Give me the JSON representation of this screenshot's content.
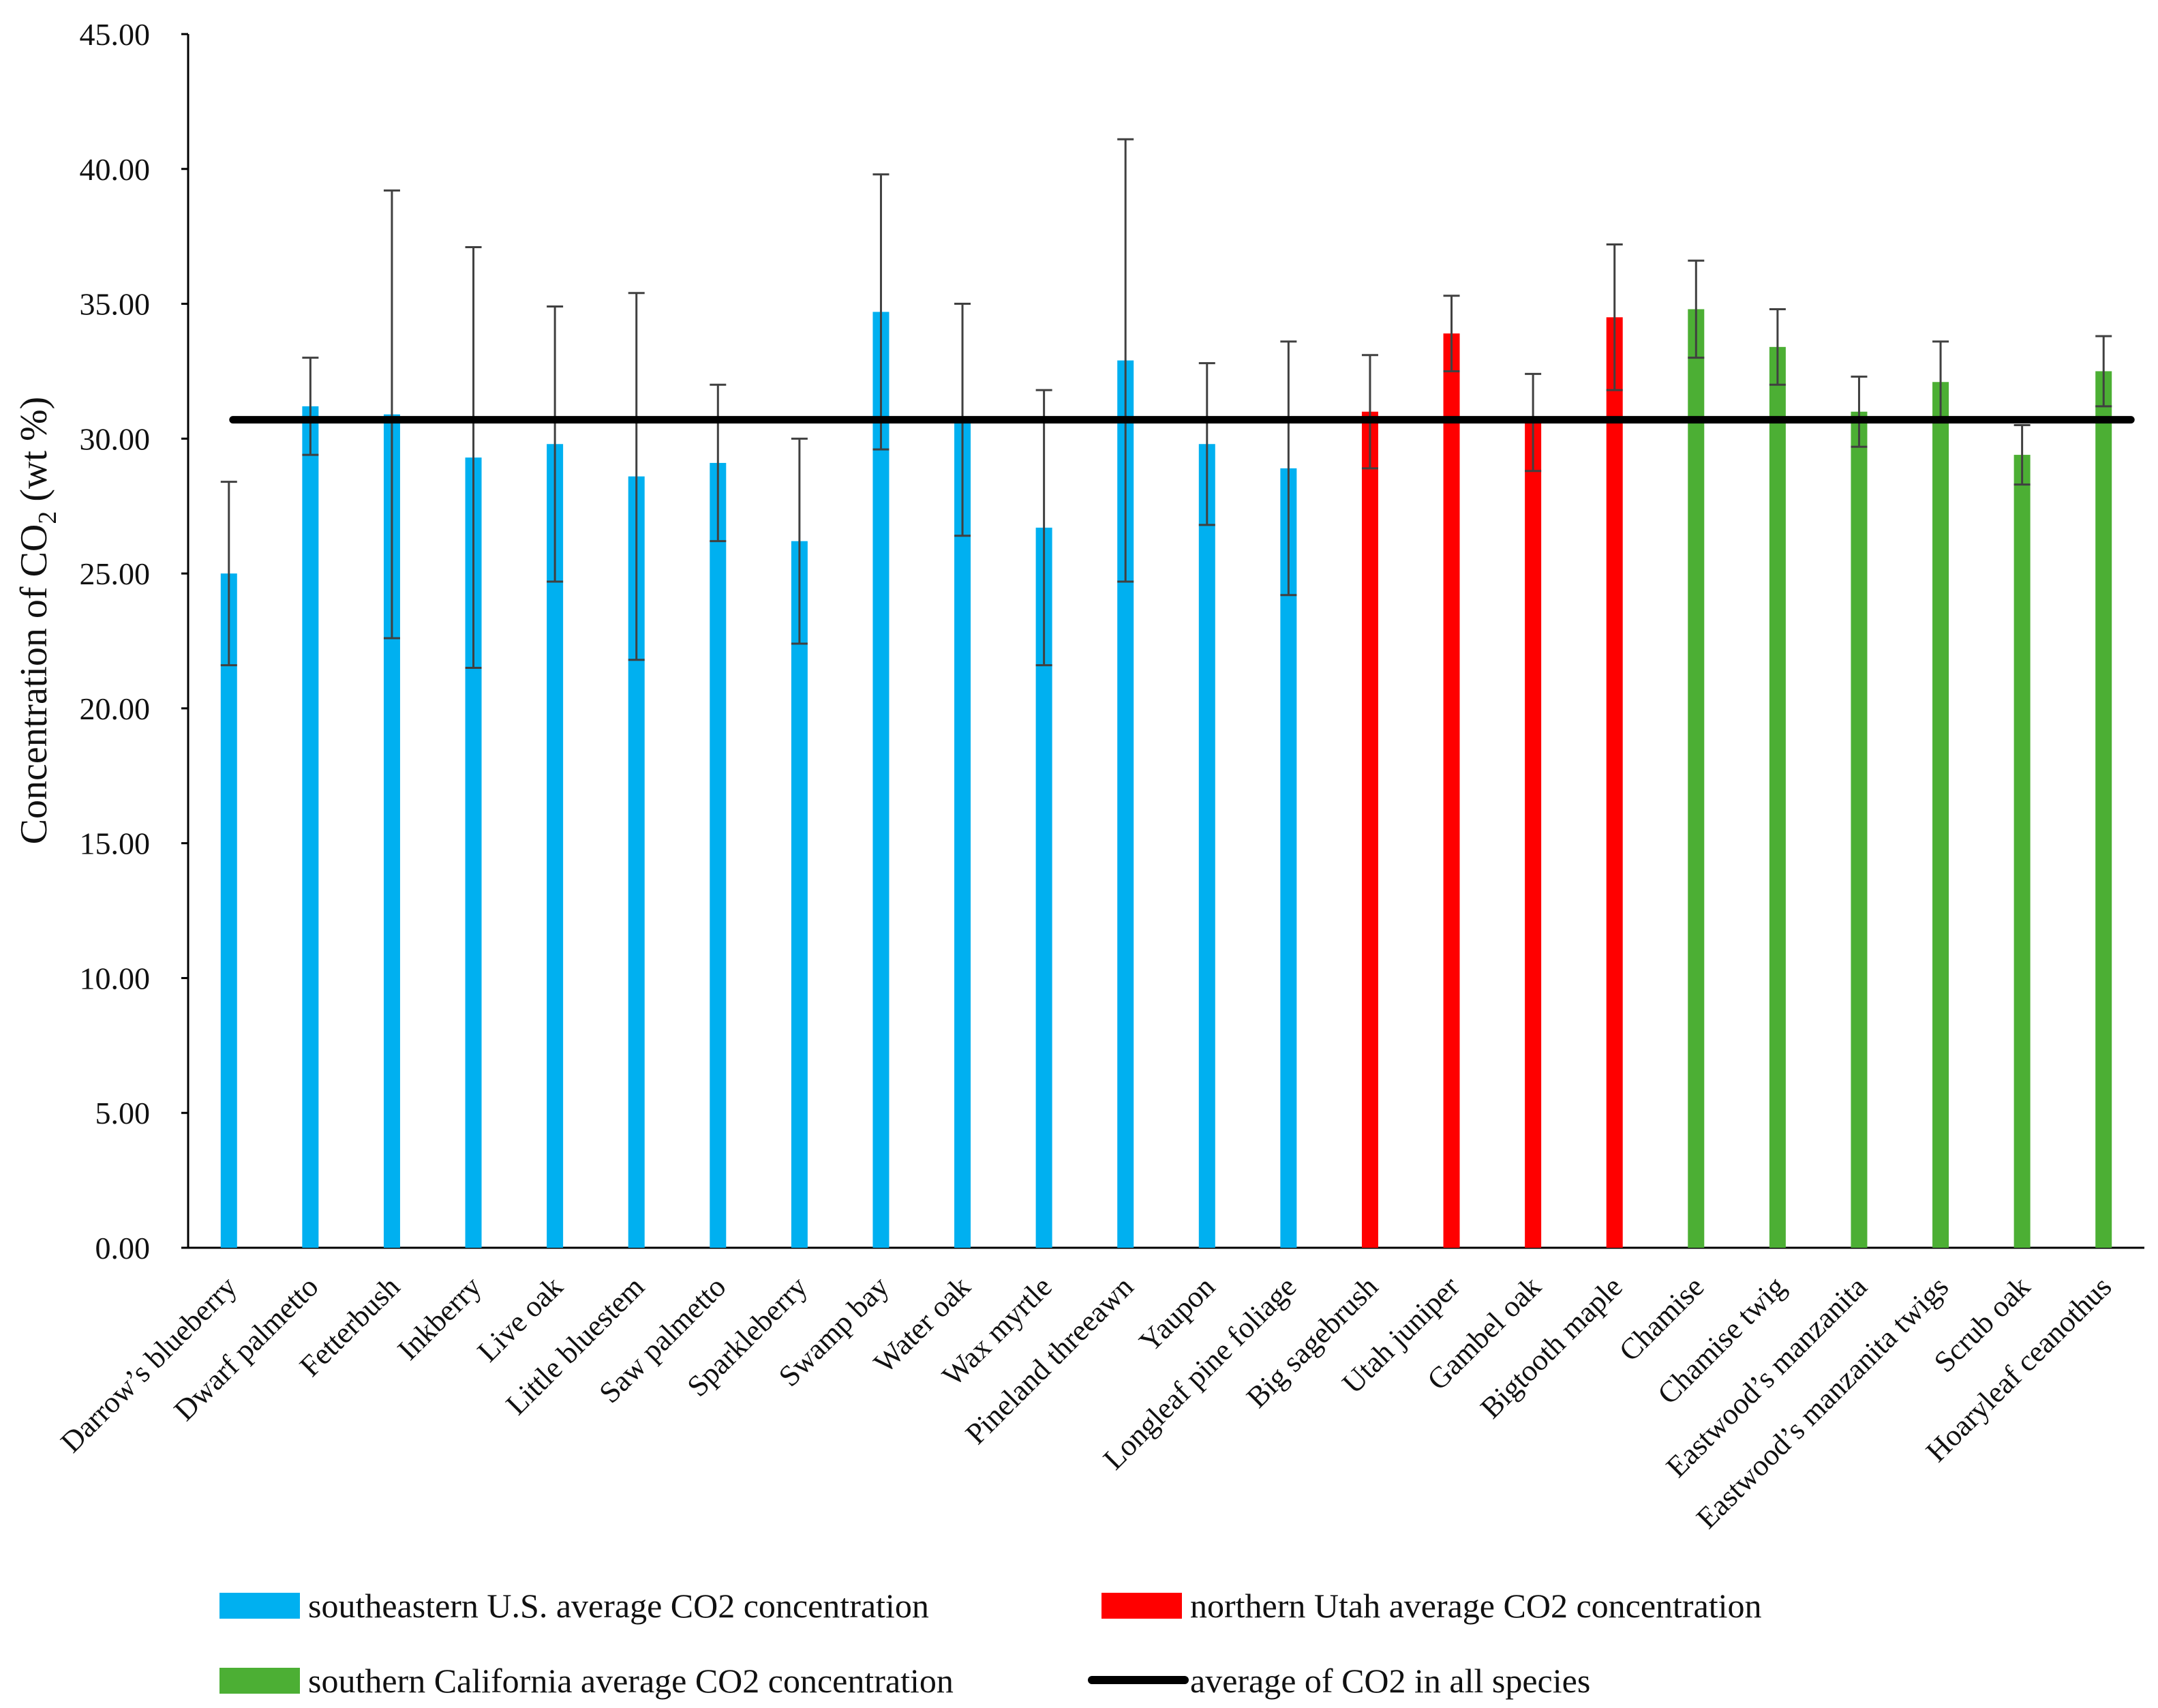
{
  "chart_data": {
    "type": "bar",
    "title": "",
    "xlabel": "",
    "ylabel": "Concentration of CO2 (wt %)",
    "ylabel_parts": {
      "before": "Concentration of CO",
      "subscript": "2",
      "after": " (wt %)"
    },
    "ylim": [
      0,
      45
    ],
    "yticks": [
      "0.00",
      "5.00",
      "10.00",
      "15.00",
      "20.00",
      "25.00",
      "30.00",
      "35.00",
      "40.00",
      "45.00"
    ],
    "grid": false,
    "legend_position": "bottom",
    "colors": {
      "southeastern": "#00b0f0",
      "utah": "#ff0000",
      "california": "#4caf34",
      "average_line": "#000000",
      "axis": "#000000",
      "error_bar": "#404040"
    },
    "categories": [
      "Darrow’s blueberry",
      "Dwarf palmetto",
      "Fetterbush",
      "Inkberry",
      "Live oak",
      "Little bluestem",
      "Saw palmetto",
      "Sparkleberry",
      "Swamp bay",
      "Water oak",
      "Wax myrtle",
      "Pineland threeawn",
      "Yaupon",
      "Longleaf pine foliage",
      "Big sagebrush",
      "Utah juniper",
      "Gambel oak",
      "Bigtooth maple",
      "Chamise",
      "Chamise twig",
      "Eastwood’s manzanita",
      "Eastwood’s manzanita twigs",
      "Scrub oak",
      "Hoaryleaf ceanothus"
    ],
    "groups": [
      "southeastern",
      "southeastern",
      "southeastern",
      "southeastern",
      "southeastern",
      "southeastern",
      "southeastern",
      "southeastern",
      "southeastern",
      "southeastern",
      "southeastern",
      "southeastern",
      "southeastern",
      "southeastern",
      "utah",
      "utah",
      "utah",
      "utah",
      "california",
      "california",
      "california",
      "california",
      "california",
      "california"
    ],
    "values": [
      25.0,
      31.2,
      30.9,
      29.3,
      29.8,
      28.6,
      29.1,
      26.2,
      34.7,
      30.7,
      26.7,
      32.9,
      29.8,
      28.9,
      31.0,
      33.9,
      30.6,
      34.5,
      34.8,
      33.4,
      31.0,
      32.1,
      29.4,
      32.5
    ],
    "errors": [
      3.4,
      1.8,
      8.3,
      7.8,
      5.1,
      6.8,
      2.9,
      3.8,
      5.1,
      4.3,
      5.1,
      8.2,
      3.0,
      4.7,
      2.1,
      1.4,
      1.8,
      2.7,
      1.8,
      1.4,
      1.3,
      1.5,
      1.1,
      1.3
    ],
    "average_all_species": 30.7,
    "legend": [
      {
        "key": "southeastern",
        "label": "southeastern U.S. average CO2 concentration"
      },
      {
        "key": "utah",
        "label": "northern Utah average CO2 concentration"
      },
      {
        "key": "california",
        "label": "southern California average CO2 concentration"
      },
      {
        "key": "average_line",
        "label": "average of CO2 in all species"
      }
    ]
  }
}
